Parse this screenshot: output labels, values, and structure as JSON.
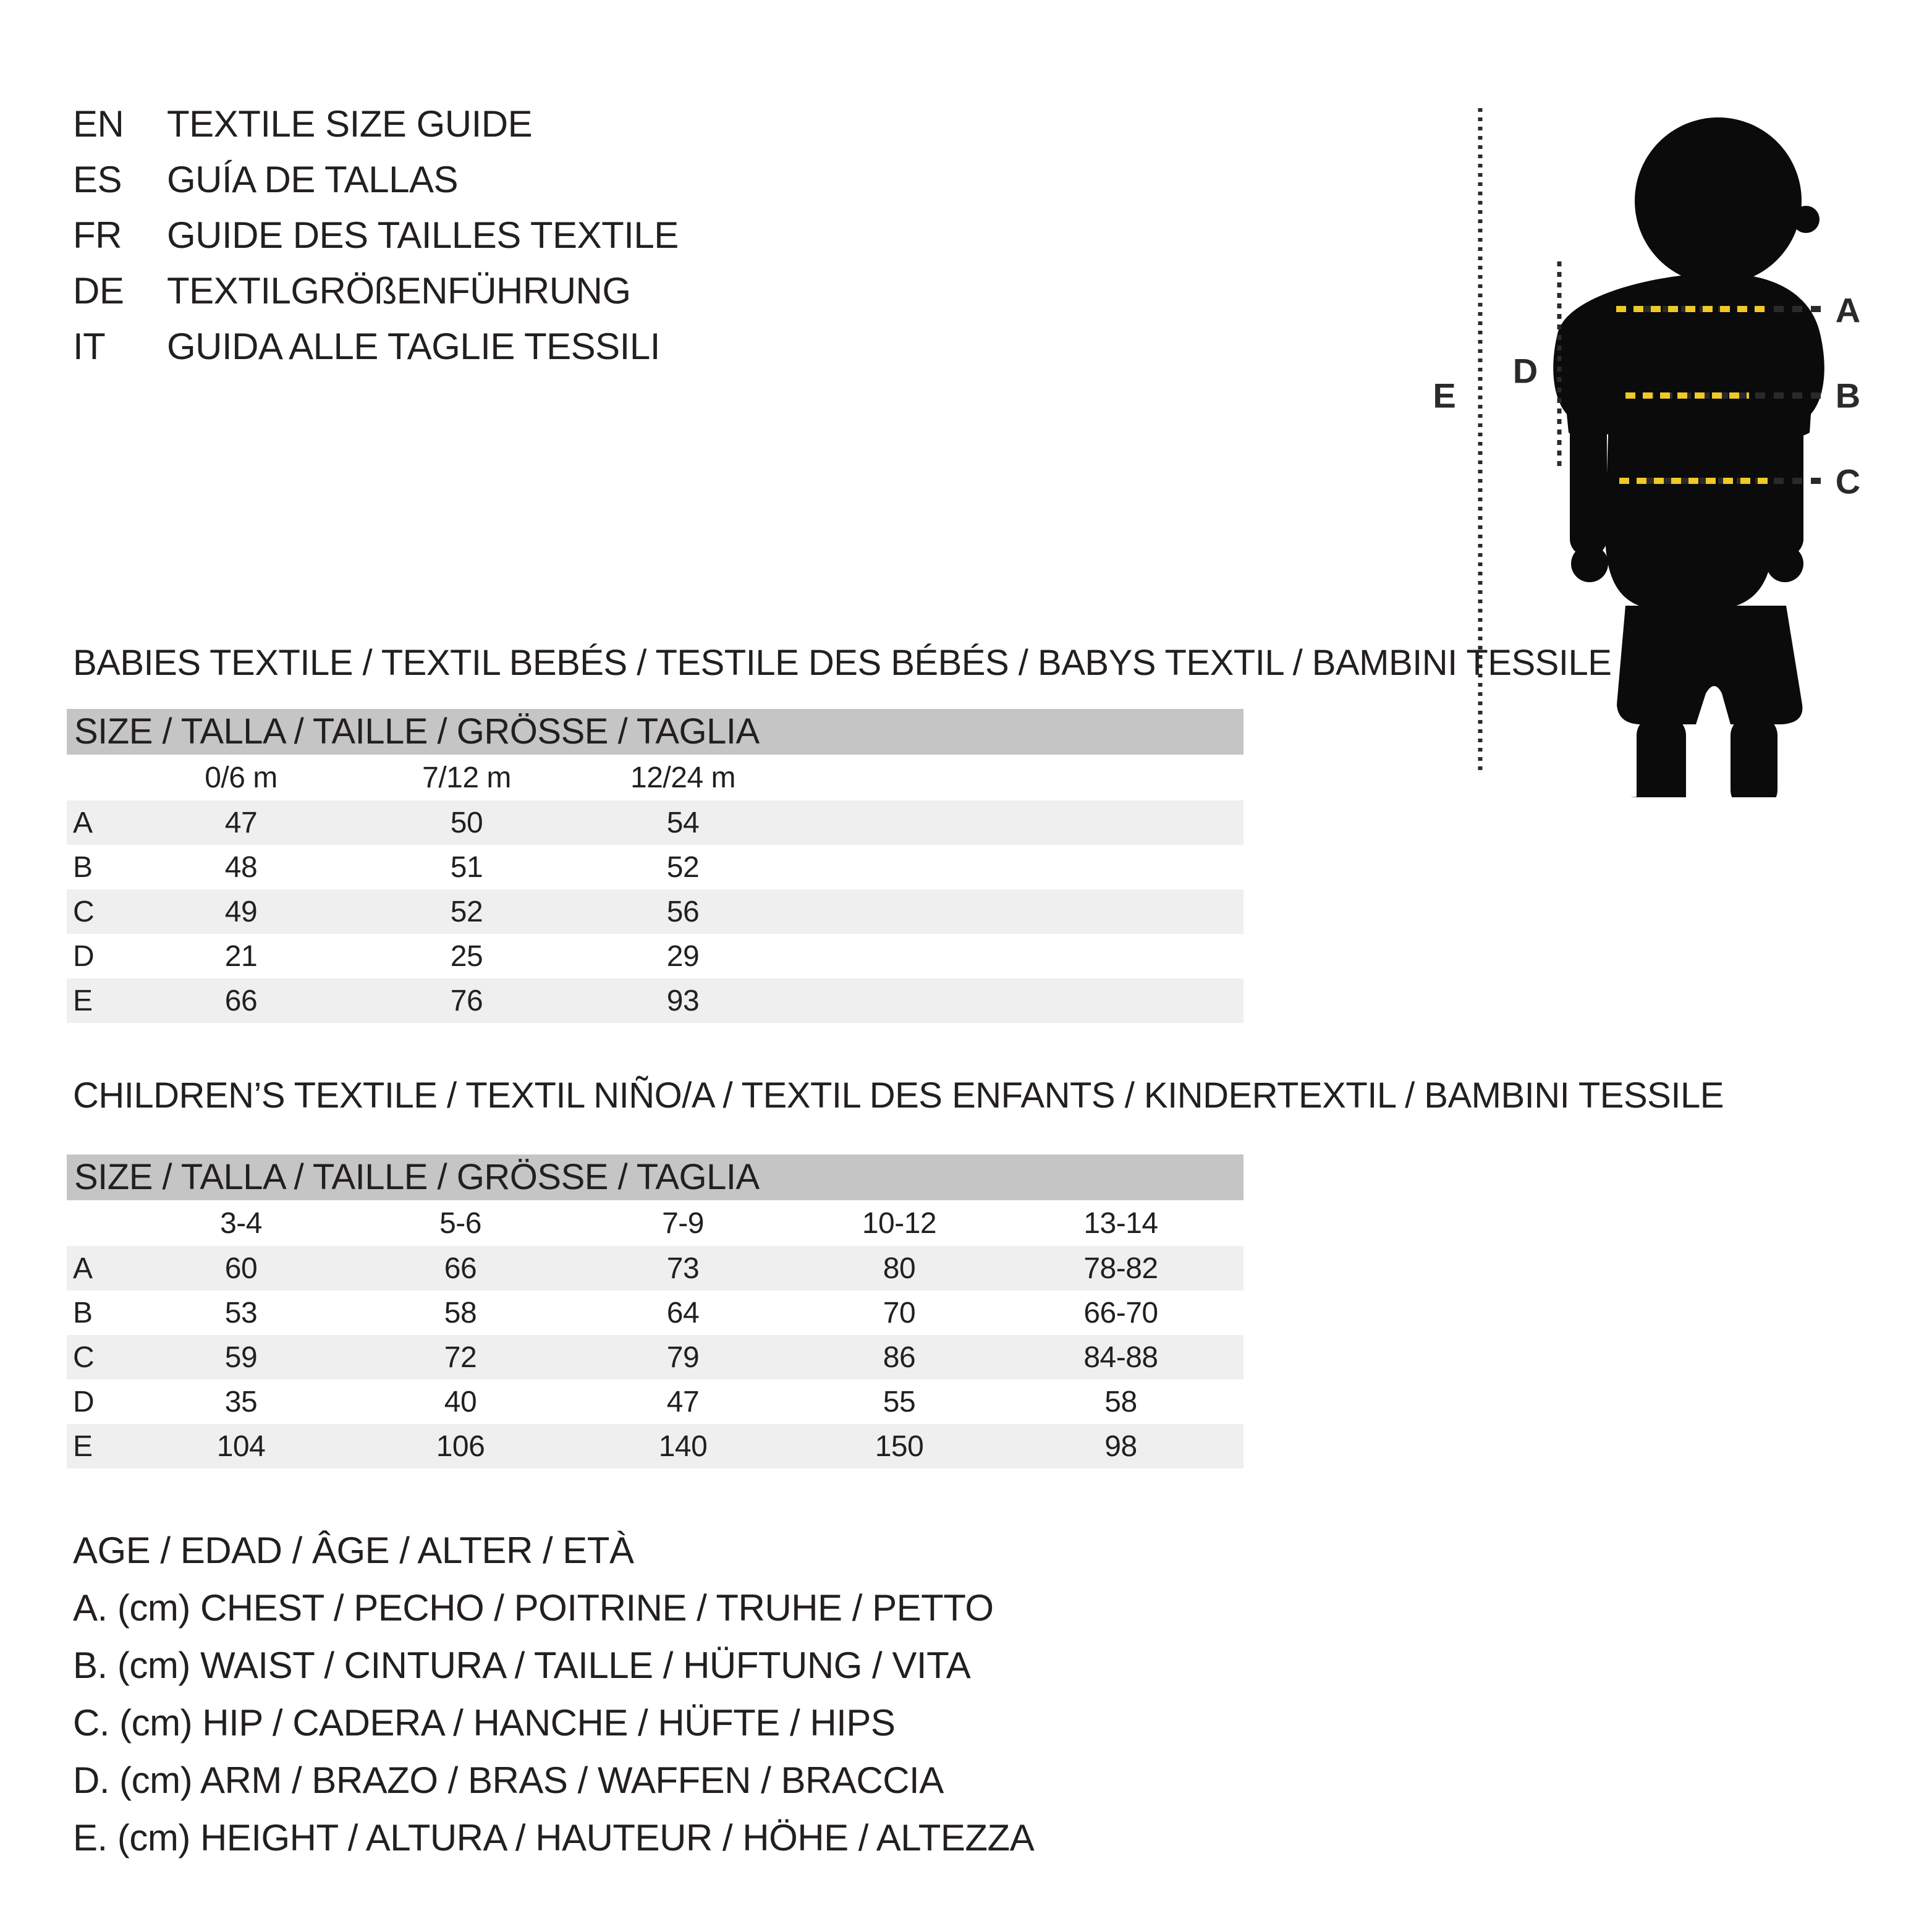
{
  "languages": [
    {
      "code": "EN",
      "label": "TEXTILE SIZE GUIDE"
    },
    {
      "code": "ES",
      "label": "GUÍA DE TALLAS"
    },
    {
      "code": "FR",
      "label": "GUIDE DES TAILLES TEXTILE"
    },
    {
      "code": "DE",
      "label": "TEXTILGRÖßENFÜHRUNG"
    },
    {
      "code": "IT",
      "label": "GUIDA ALLE TAGLIE TESSILI"
    }
  ],
  "babies": {
    "heading": "BABIES TEXTILE / TEXTIL BEBÉS / TESTILE DES BÉBÉS / BABYS TEXTIL / BAMBINI TESSILE",
    "size_header": "SIZE / TALLA / TAILLE / GRÖSSE / TAGLIA",
    "columns": [
      "0/6 m",
      "7/12 m",
      "12/24 m"
    ],
    "rows": [
      {
        "label": "A",
        "values": [
          "47",
          "50",
          "54"
        ]
      },
      {
        "label": "B",
        "values": [
          "48",
          "51",
          "52"
        ]
      },
      {
        "label": "C",
        "values": [
          "49",
          "52",
          "56"
        ]
      },
      {
        "label": "D",
        "values": [
          "21",
          "25",
          "29"
        ]
      },
      {
        "label": "E",
        "values": [
          "66",
          "76",
          "93"
        ]
      }
    ]
  },
  "children": {
    "heading": "CHILDREN’S TEXTILE / TEXTIL NIÑO/A / TEXTIL DES ENFANTS / KINDERTEXTIL / BAMBINI TESSILE",
    "size_header": "SIZE / TALLA / TAILLE / GRÖSSE / TAGLIA",
    "columns": [
      "3-4",
      "5-6",
      "7-9",
      "10-12",
      "13-14"
    ],
    "rows": [
      {
        "label": "A",
        "values": [
          "60",
          "66",
          "73",
          "80",
          "78-82"
        ]
      },
      {
        "label": "B",
        "values": [
          "53",
          "58",
          "64",
          "70",
          "66-70"
        ]
      },
      {
        "label": "C",
        "values": [
          "59",
          "72",
          "79",
          "86",
          "84-88"
        ]
      },
      {
        "label": "D",
        "values": [
          "35",
          "40",
          "47",
          "55",
          "58"
        ]
      },
      {
        "label": "E",
        "values": [
          "104",
          "106",
          "140",
          "150",
          "98"
        ]
      }
    ]
  },
  "legend": {
    "lines": [
      "AGE / EDAD / ÂGE / ALTER / ETÀ",
      "A. (cm) CHEST / PECHO / POITRINE / TRUHE / PETTO",
      "B. (cm) WAIST / CINTURA / TAILLE / HÜFTUNG / VITA",
      "C. (cm) HIP / CADERA / HANCHE / HÜFTE / HIPS",
      "D. (cm) ARM / BRAZO / BRAS / WAFFEN / BRACCIA",
      "E. (cm) HEIGHT / ALTURA / HAUTEUR / HÖHE / ALTEZZA"
    ]
  },
  "figure": {
    "labels": {
      "a": "A",
      "b": "B",
      "c": "C",
      "d": "D",
      "e": "E"
    }
  },
  "colors": {
    "measure_yellow": "#f0c828",
    "measure_dark": "#2a2a2a",
    "size_bar_gray": "#c5c5c5",
    "row_stripe_gray": "#efefef",
    "silhouette_black": "#0b0b0b",
    "text": "#231f20"
  }
}
